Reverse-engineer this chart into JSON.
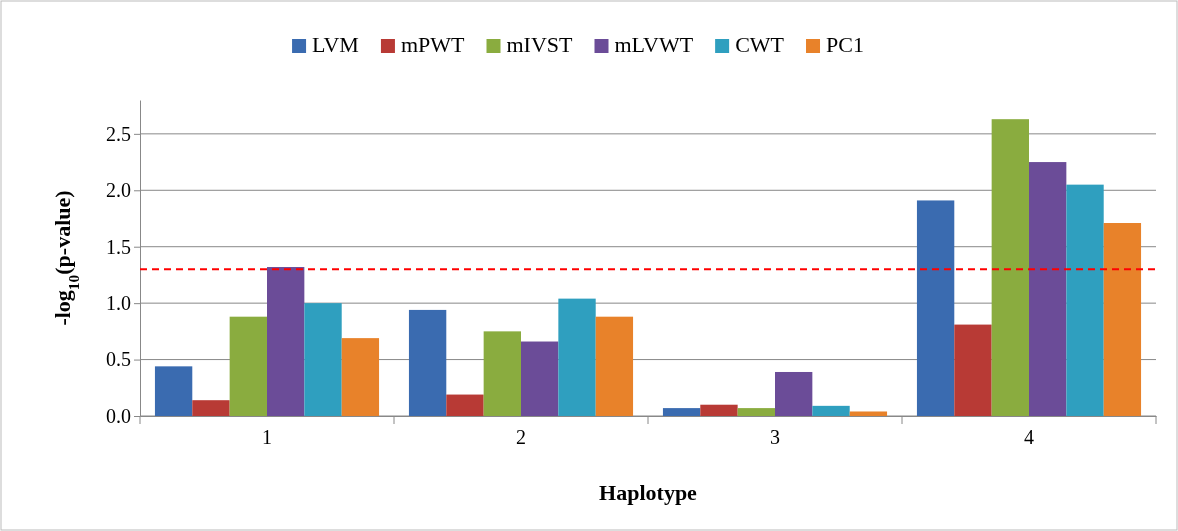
{
  "chart_data": {
    "type": "bar",
    "xlabel": "Haplotype",
    "ylabel": "-log$_{10}$(p-value)",
    "categories": [
      "1",
      "2",
      "3",
      "4"
    ],
    "series": [
      {
        "name": "LVM",
        "color": "#3a6bb0",
        "values": [
          0.44,
          0.94,
          0.07,
          1.91
        ]
      },
      {
        "name": "mPWT",
        "color": "#b83a35",
        "values": [
          0.14,
          0.19,
          0.1,
          0.81
        ]
      },
      {
        "name": "mIVST",
        "color": "#8aac3f",
        "values": [
          0.88,
          0.75,
          0.07,
          2.63
        ]
      },
      {
        "name": "mLVWT",
        "color": "#6b4c98",
        "values": [
          1.32,
          0.66,
          0.39,
          2.25
        ]
      },
      {
        "name": "CWT",
        "color": "#2f9fbf",
        "values": [
          1.0,
          1.04,
          0.09,
          2.05
        ]
      },
      {
        "name": "PC1",
        "color": "#e8822a",
        "values": [
          0.69,
          0.88,
          0.04,
          1.71
        ]
      }
    ],
    "ylim": [
      0,
      2.8
    ],
    "yticks": [
      {
        "value": 0,
        "label": "0.0"
      },
      {
        "value": 0.5,
        "label": "0.5"
      },
      {
        "value": 1,
        "label": "1.0"
      },
      {
        "value": 1.5,
        "label": "1.5"
      },
      {
        "value": 2,
        "label": "2.0"
      },
      {
        "value": 2.5,
        "label": "2.5"
      }
    ],
    "grid": "y",
    "legend": "top",
    "ref_lines": [
      {
        "axis": "y",
        "value": 1.3,
        "color": "#ff0000",
        "line_style": "dashed"
      }
    ]
  }
}
